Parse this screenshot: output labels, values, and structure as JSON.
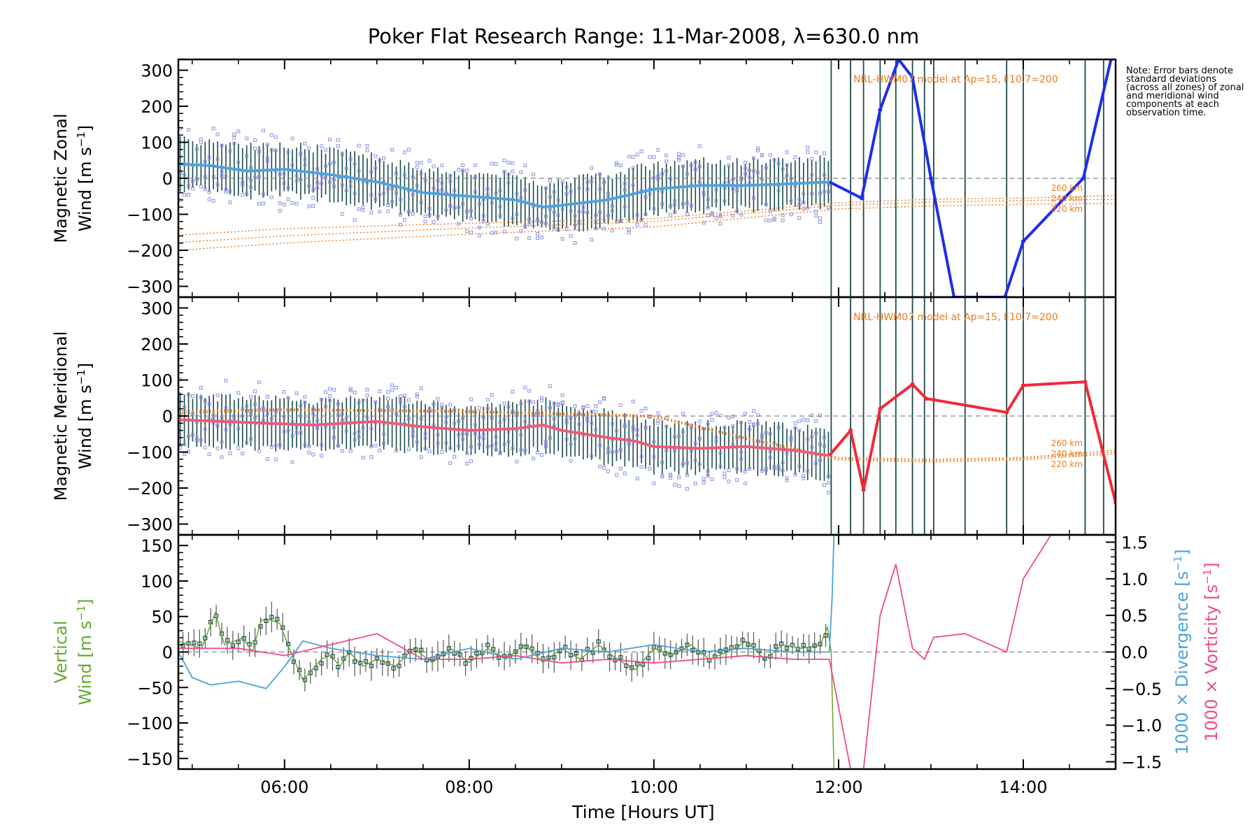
{
  "title": "Poker Flat Research Range: 11-Mar-2008, λ=630.0 nm",
  "note": "Note: Error bars denote standard deviations (across all zones) of zonal and meridional wind components at each observation time.",
  "colors": {
    "zonal": "#1f2ee8",
    "zonal_data": "#4fa3dd",
    "meridional": "#f0283a",
    "meridional_data": "#f05a78",
    "vertical": "#64a832",
    "divergence": "#4aa3d8",
    "vorticity": "#ee4b88",
    "model": "#f07a1a",
    "scatter": "#9090e6",
    "errbar": "#1c4a4a"
  },
  "chart_data": [
    {
      "type": "line",
      "panel": "zonal",
      "title": "Poker Flat Research Range: 11-Mar-2008, λ=630.0 nm",
      "ylabel": "Magnetic Zonal",
      "ylabel2": "Wind [m s-1]",
      "xlim": [
        4.85,
        15.0
      ],
      "ylim": [
        -330,
        330
      ],
      "yticks": [
        -300,
        -200,
        -100,
        0,
        100,
        200,
        300
      ],
      "model_annotation": "NRL-HWM07 model at Ap=15, F10.7=200",
      "model_labels": [
        "260 km",
        "240 km",
        "220 km"
      ],
      "model_series": [
        {
          "name": "260 km",
          "x": [
            4.85,
            6.0,
            8.0,
            10.0,
            12.0,
            13.0,
            14.0,
            15.0
          ],
          "y": [
            -158,
            -140,
            -125,
            -112,
            -68,
            -58,
            -55,
            -48
          ]
        },
        {
          "name": "240 km",
          "x": [
            4.85,
            6.0,
            8.0,
            10.0,
            12.0,
            13.0,
            14.0,
            15.0
          ],
          "y": [
            -178,
            -160,
            -138,
            -120,
            -75,
            -66,
            -62,
            -58
          ]
        },
        {
          "name": "220 km",
          "x": [
            4.85,
            6.0,
            8.0,
            10.0,
            12.0,
            13.0,
            14.0,
            15.0
          ],
          "y": [
            -200,
            -180,
            -155,
            -135,
            -85,
            -77,
            -72,
            -70
          ]
        }
      ],
      "mean_series": {
        "name": "zonal",
        "x": [
          4.85,
          5.2,
          5.6,
          6.0,
          6.5,
          7.0,
          7.5,
          8.0,
          8.5,
          8.8,
          9.0,
          9.5,
          10.0,
          10.5,
          11.0,
          11.5,
          11.9,
          12.25,
          12.45,
          12.65,
          12.8,
          13.0,
          13.25,
          13.8,
          14.0,
          14.65,
          14.95
        ],
        "y": [
          40,
          35,
          20,
          25,
          10,
          -10,
          -40,
          -50,
          -60,
          -80,
          -75,
          -60,
          -30,
          -20,
          -20,
          -15,
          -10,
          -55,
          190,
          330,
          280,
          0,
          -330,
          -330,
          -175,
          0,
          330
        ]
      },
      "obs_times": [
        11.92,
        12.13,
        12.27,
        12.45,
        12.62,
        12.8,
        12.93,
        13.03,
        13.37,
        13.82,
        14.0,
        14.67,
        14.87
      ]
    },
    {
      "type": "line",
      "panel": "meridional",
      "ylabel": "Magnetic Meridional",
      "ylabel2": "Wind [m s-1]",
      "xlim": [
        4.85,
        15.0
      ],
      "ylim": [
        -330,
        330
      ],
      "yticks": [
        -300,
        -200,
        -100,
        0,
        100,
        200,
        300
      ],
      "model_annotation": "NRL-HWM07 model at Ap=15, F10.7=200",
      "model_labels": [
        "260 km",
        "240 km",
        "220 km"
      ],
      "model_series": [
        {
          "name": "260 km",
          "x": [
            4.85,
            6.0,
            8.0,
            10.0,
            11.0,
            12.0,
            13.0,
            14.0,
            15.0
          ],
          "y": [
            15,
            20,
            15,
            2,
            -60,
            -115,
            -120,
            -115,
            -95
          ]
        },
        {
          "name": "240 km",
          "x": [
            4.85,
            6.0,
            8.0,
            10.0,
            11.0,
            12.0,
            13.0,
            14.0,
            15.0
          ],
          "y": [
            10,
            18,
            12,
            0,
            -62,
            -118,
            -124,
            -118,
            -100
          ]
        },
        {
          "name": "220 km",
          "x": [
            4.85,
            6.0,
            8.0,
            10.0,
            11.0,
            12.0,
            13.0,
            14.0,
            15.0
          ],
          "y": [
            6,
            15,
            10,
            -3,
            -65,
            -122,
            -128,
            -122,
            -105
          ]
        }
      ],
      "mean_series": {
        "name": "meridional",
        "x": [
          4.85,
          5.3,
          5.8,
          6.3,
          7.0,
          7.5,
          8.0,
          8.5,
          8.8,
          9.0,
          9.5,
          9.8,
          10.0,
          10.5,
          11.0,
          11.5,
          11.9,
          12.13,
          12.27,
          12.45,
          12.8,
          12.95,
          13.03,
          13.82,
          14.0,
          14.67,
          15.0
        ],
        "y": [
          -10,
          -15,
          -20,
          -25,
          -15,
          -30,
          -40,
          -35,
          -25,
          -40,
          -60,
          -70,
          -85,
          -90,
          -85,
          -95,
          -110,
          -40,
          -205,
          20,
          88,
          48,
          45,
          10,
          85,
          95,
          -240
        ]
      },
      "obs_times": [
        11.92,
        12.13,
        12.27,
        12.45,
        12.62,
        12.8,
        12.93,
        13.03,
        13.37,
        13.82,
        14.0,
        14.67,
        14.87
      ]
    },
    {
      "type": "line",
      "panel": "vertical",
      "xlabel": "Time [Hours UT]",
      "ylabel": "Vertical",
      "ylabel2": "Wind [m s-1]",
      "y2label": "1000 × Divergence [s-1]",
      "y3label": "1000 × Vorticity [s-1]",
      "xlim": [
        4.85,
        15.0
      ],
      "ylim": [
        -165,
        165
      ],
      "yticks": [
        -150,
        -100,
        -50,
        0,
        50,
        100,
        150
      ],
      "y2lim": [
        -1.6,
        1.6
      ],
      "y2ticks": [
        "-1.5",
        "-1.0",
        "-0.5",
        "0.0",
        "0.5",
        "1.0",
        "1.5"
      ],
      "xticks": [
        "06:00",
        "08:00",
        "10:00",
        "12:00",
        "14:00"
      ],
      "xtick_values": [
        6,
        8,
        10,
        12,
        14
      ],
      "series": [
        {
          "name": "vertical",
          "x": [
            4.85,
            5.1,
            5.25,
            5.35,
            5.55,
            5.65,
            5.75,
            5.85,
            5.95,
            6.05,
            6.2,
            6.3,
            6.4,
            6.5,
            6.6,
            6.7,
            6.85,
            7.0,
            7.2,
            7.4,
            7.6,
            7.8,
            8.0,
            8.2,
            8.4,
            8.6,
            8.8,
            9.0,
            9.2,
            9.4,
            9.6,
            9.8,
            10.0,
            10.2,
            10.4,
            10.6,
            10.8,
            11.0,
            11.2,
            11.4,
            11.6,
            11.8,
            11.88,
            11.92,
            11.95
          ],
          "y": [
            15,
            5,
            55,
            10,
            20,
            0,
            45,
            45,
            40,
            5,
            -40,
            -25,
            -10,
            -5,
            -20,
            0,
            -20,
            -10,
            -20,
            5,
            -15,
            5,
            -15,
            5,
            -10,
            10,
            -15,
            5,
            -10,
            10,
            -10,
            -25,
            5,
            -5,
            10,
            -10,
            0,
            15,
            -10,
            10,
            5,
            10,
            35,
            0,
            -165
          ]
        },
        {
          "name": "divergence",
          "axis": "y2",
          "x": [
            4.85,
            5.0,
            5.2,
            5.5,
            5.8,
            6.0,
            6.2,
            6.5,
            7.0,
            7.5,
            8.0,
            8.5,
            9.0,
            9.5,
            10.0,
            10.5,
            11.0,
            11.5,
            11.9,
            11.93,
            11.95
          ],
          "y": [
            0.0,
            -0.35,
            -0.45,
            -0.4,
            -0.5,
            -0.2,
            0.15,
            0.05,
            -0.05,
            -0.1,
            0.05,
            -0.1,
            0.05,
            0.0,
            0.1,
            0.0,
            0.05,
            0.0,
            0.0,
            0.75,
            1.6
          ]
        },
        {
          "name": "vorticity",
          "axis": "y2",
          "x": [
            4.85,
            5.5,
            6.0,
            6.5,
            7.0,
            7.5,
            8.0,
            8.5,
            9.0,
            9.5,
            10.0,
            10.5,
            11.0,
            11.5,
            11.9,
            12.13,
            12.27,
            12.45,
            12.62,
            12.8,
            12.93,
            13.03,
            13.37,
            13.82,
            14.0,
            14.3
          ],
          "y": [
            0.05,
            0.05,
            -0.05,
            0.1,
            0.25,
            -0.1,
            -0.1,
            -0.05,
            -0.15,
            -0.1,
            -0.15,
            -0.1,
            -0.05,
            -0.1,
            -0.1,
            -1.6,
            -1.6,
            0.5,
            1.2,
            0.05,
            -0.1,
            0.2,
            0.25,
            0.0,
            1.0,
            1.6
          ]
        }
      ]
    }
  ]
}
